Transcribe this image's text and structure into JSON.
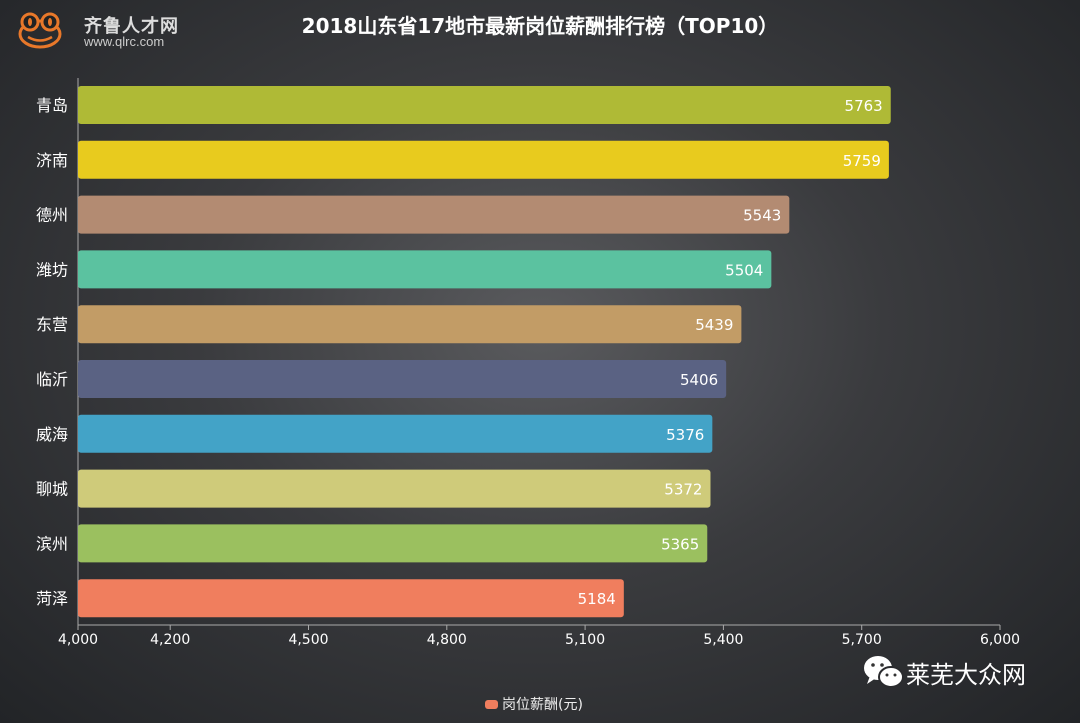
{
  "logo": {
    "name": "齐鲁人才网",
    "url": "www.qlrc.com"
  },
  "watermark": {
    "text": "莱芜大众网",
    "icon": "wechat-icon"
  },
  "chart_data": {
    "type": "bar",
    "orientation": "horizontal",
    "title": "2018山东省17地市最新岗位薪酬排行榜（TOP10）",
    "categories": [
      "青岛",
      "济南",
      "德州",
      "潍坊",
      "东营",
      "临沂",
      "威海",
      "聊城",
      "滨州",
      "菏泽"
    ],
    "values": [
      5763,
      5759,
      5543,
      5504,
      5439,
      5406,
      5376,
      5372,
      5365,
      5184
    ],
    "colors": [
      "#afba36",
      "#e8cb1e",
      "#b38b72",
      "#5bc2a0",
      "#c29c66",
      "#5a6283",
      "#43a3c7",
      "#cfcb7a",
      "#9bc05f",
      "#f07e5e"
    ],
    "xlim": [
      4000,
      6000
    ],
    "xticks": [
      4000,
      4200,
      4500,
      4800,
      5100,
      5400,
      5700,
      6000
    ],
    "xtick_labels": [
      "4,000",
      "4,200",
      "4,500",
      "4,800",
      "5,100",
      "5,400",
      "5,700",
      "6,000"
    ],
    "grid": false,
    "legend": {
      "position": "bottom",
      "entries": [
        {
          "name": "岗位薪酬(元)",
          "color": "#f07e5e"
        }
      ]
    }
  }
}
